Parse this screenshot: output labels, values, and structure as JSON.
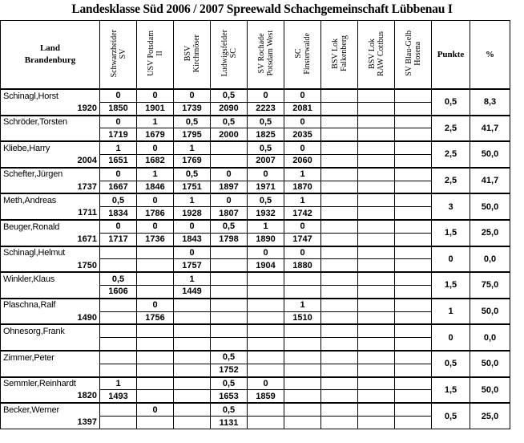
{
  "title": "Landesklasse Süd 2006 / 2007 Spreewald Schachgemeinschaft Lübbenau I",
  "header": {
    "corner_line1": "Land",
    "corner_line2": "Brandenburg",
    "teams": [
      "Schwarzheider\nSV",
      "USV Potsdam\nII",
      "BSV\nKirchmöser",
      "Ludwigsfelder\nSC",
      "SV Rochade\nPotsdam West",
      "SC\nFinsterwalde",
      "BSV Lok\nFalkenberg",
      "BSV Lok\nRAW Cottbus",
      "SV Blau-Gelb\nHosena"
    ],
    "points_label": "Punkte",
    "percent_label": "%"
  },
  "result_colors": {
    "1": "#c00000",
    "0,5": "#1a1aa8",
    "0": "#008a00"
  },
  "players": [
    {
      "name": "Schinagl,Horst",
      "year": "1920",
      "results": [
        "0",
        "0",
        "0",
        "0,5",
        "0",
        "0",
        "",
        "",
        ""
      ],
      "ratings": [
        "1850",
        "1901",
        "1739",
        "2090",
        "2223",
        "2081",
        "",
        "",
        ""
      ],
      "points": "0,5",
      "percent": "8,3"
    },
    {
      "name": "Schröder,Torsten",
      "year": "",
      "results": [
        "0",
        "1",
        "0,5",
        "0,5",
        "0,5",
        "0",
        "",
        "",
        ""
      ],
      "ratings": [
        "1719",
        "1679",
        "1795",
        "2000",
        "1825",
        "2035",
        "",
        "",
        ""
      ],
      "points": "2,5",
      "percent": "41,7"
    },
    {
      "name": "Kliebe,Harry",
      "year": "2004",
      "results": [
        "1",
        "0",
        "1",
        "",
        "0,5",
        "0",
        "",
        "",
        ""
      ],
      "ratings": [
        "1651",
        "1682",
        "1769",
        "",
        "2007",
        "2060",
        "",
        "",
        ""
      ],
      "points": "2,5",
      "percent": "50,0"
    },
    {
      "name": "Schefter,Jürgen",
      "year": "1737",
      "results": [
        "0",
        "1",
        "0,5",
        "0",
        "0",
        "1",
        "",
        "",
        ""
      ],
      "ratings": [
        "1667",
        "1846",
        "1751",
        "1897",
        "1971",
        "1870",
        "",
        "",
        ""
      ],
      "points": "2,5",
      "percent": "41,7"
    },
    {
      "name": "Meth,Andreas",
      "year": "1711",
      "results": [
        "0,5",
        "0",
        "1",
        "0",
        "0,5",
        "1",
        "",
        "",
        ""
      ],
      "ratings": [
        "1834",
        "1786",
        "1928",
        "1807",
        "1932",
        "1742",
        "",
        "",
        ""
      ],
      "points": "3",
      "percent": "50,0"
    },
    {
      "name": "Beuger,Ronald",
      "year": "1671",
      "results": [
        "0",
        "0",
        "0",
        "0,5",
        "1",
        "0",
        "",
        "",
        ""
      ],
      "ratings": [
        "1717",
        "1736",
        "1843",
        "1798",
        "1890",
        "1747",
        "",
        "",
        ""
      ],
      "points": "1,5",
      "percent": "25,0"
    },
    {
      "name": "Schinagl,Helmut",
      "year": "1750",
      "results": [
        "",
        "",
        "0",
        "",
        "0",
        "0",
        "",
        "",
        ""
      ],
      "ratings": [
        "",
        "",
        "1757",
        "",
        "1904",
        "1880",
        "",
        "",
        ""
      ],
      "points": "0",
      "percent": "0,0"
    },
    {
      "name": "Winkler,Klaus",
      "year": "",
      "results": [
        "0,5",
        "",
        "1",
        "",
        "",
        "",
        "",
        "",
        ""
      ],
      "ratings": [
        "1606",
        "",
        "1449",
        "",
        "",
        "",
        "",
        "",
        ""
      ],
      "points": "1,5",
      "percent": "75,0"
    },
    {
      "name": "Plaschna,Ralf",
      "year": "1490",
      "results": [
        "",
        "0",
        "",
        "",
        "",
        "1",
        "",
        "",
        ""
      ],
      "ratings": [
        "",
        "1756",
        "",
        "",
        "",
        "1510",
        "",
        "",
        ""
      ],
      "points": "1",
      "percent": "50,0"
    },
    {
      "name": "Ohnesorg,Frank",
      "year": "",
      "results": [
        "",
        "",
        "",
        "",
        "",
        "",
        "",
        "",
        ""
      ],
      "ratings": [
        "",
        "",
        "",
        "",
        "",
        "",
        "",
        "",
        ""
      ],
      "points": "0",
      "percent": "0,0"
    },
    {
      "name": "Zimmer,Peter",
      "year": "",
      "results": [
        "",
        "",
        "",
        "0,5",
        "",
        "",
        "",
        "",
        ""
      ],
      "ratings": [
        "",
        "",
        "",
        "1752",
        "",
        "",
        "",
        "",
        ""
      ],
      "points": "0,5",
      "percent": "50,0"
    },
    {
      "name": "Semmler,Reinhardt",
      "year": "1820",
      "results": [
        "1",
        "",
        "",
        "0,5",
        "0",
        "",
        "",
        "",
        ""
      ],
      "ratings": [
        "1493",
        "",
        "",
        "1653",
        "1859",
        "",
        "",
        "",
        ""
      ],
      "points": "1,5",
      "percent": "50,0"
    },
    {
      "name": "Becker,Werner",
      "year": "1397",
      "results": [
        "",
        "0",
        "",
        "0,5",
        "",
        "",
        "",
        "",
        ""
      ],
      "ratings": [
        "",
        "",
        "",
        "1131",
        "",
        "",
        "",
        "",
        ""
      ],
      "points": "0,5",
      "percent": "25,0"
    }
  ]
}
